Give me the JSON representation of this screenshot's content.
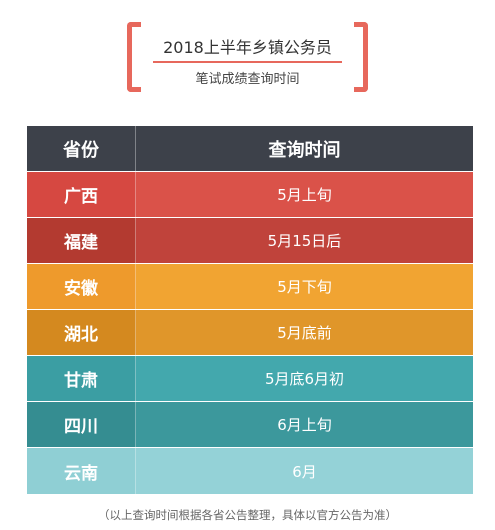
{
  "title": {
    "main": "2018上半年乡镇公务员",
    "sub": "笔试成绩查询时间"
  },
  "table": {
    "headers": {
      "province": "省份",
      "time": "查询时间"
    },
    "header_color": "#3d414a",
    "rows": [
      {
        "province": "广西",
        "time": "5月上旬",
        "prov_color": "#d64841",
        "time_color": "#da5249"
      },
      {
        "province": "福建",
        "time": "5月15日后",
        "prov_color": "#b33a30",
        "time_color": "#c0433b"
      },
      {
        "province": "安徽",
        "time": "5月下旬",
        "prov_color": "#ee9a2c",
        "time_color": "#f1a432"
      },
      {
        "province": "湖北",
        "time": "5月底前",
        "prov_color": "#d4891f",
        "time_color": "#e0962a"
      },
      {
        "province": "甘肃",
        "time": "5月底6月初",
        "prov_color": "#3b9ea3",
        "time_color": "#43a8ad"
      },
      {
        "province": "四川",
        "time": "6月上旬",
        "prov_color": "#358d91",
        "time_color": "#3c989c"
      },
      {
        "province": "云南",
        "time": "6月",
        "prov_color": "#8fcfd4",
        "time_color": "#94d2d7"
      }
    ]
  },
  "footnote": "（以上查询时间根据各省公告整理，具体以官方公告为准）"
}
